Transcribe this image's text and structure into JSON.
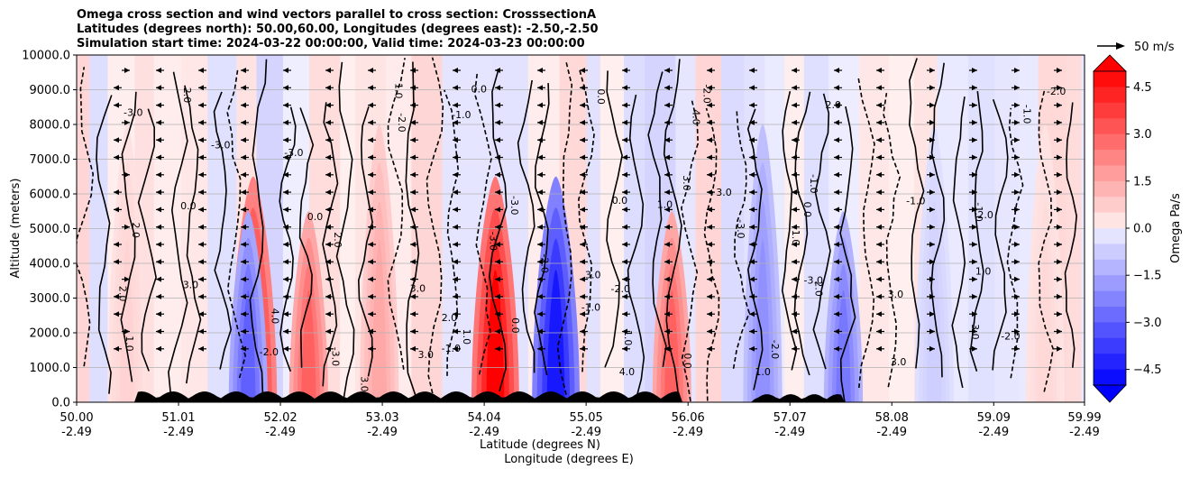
{
  "chart_data": {
    "type": "heatmap",
    "title_lines": [
      "Omega cross section and wind vectors parallel to cross section: CrosssectionA",
      "Latitudes (degrees north): 50.00,60.00, Longitudes (degrees east): -2.50,-2.50",
      "Simulation start time: 2024-03-22 00:00:00, Valid time: 2024-03-23 00:00:00"
    ],
    "ylabel": "Altitude (meters)",
    "xlabel_lat": "Latitude (degrees N)",
    "xlabel_lon": "Longitude (degrees E)",
    "ylim": [
      0,
      10000
    ],
    "xlim": [
      50.0,
      59.99
    ],
    "yticks": [
      "0.0",
      "1000.0",
      "2000.0",
      "3000.0",
      "4000.0",
      "5000.0",
      "6000.0",
      "7000.0",
      "8000.0",
      "9000.0",
      "10000.0"
    ],
    "xticks_lat": [
      "50.00",
      "51.01",
      "52.02",
      "53.03",
      "54.04",
      "55.05",
      "56.06",
      "57.07",
      "58.08",
      "59.09",
      "59.99"
    ],
    "xticks_lon": [
      "-2.49",
      "-2.49",
      "-2.49",
      "-2.49",
      "-2.49",
      "-2.49",
      "-2.49",
      "-2.49",
      "-2.49",
      "-2.49",
      "-2.49"
    ],
    "grid": true,
    "colorbar": {
      "label": "Omega Pa/s",
      "range": [
        -5.0,
        5.0
      ],
      "ticks": [
        "4.5",
        "3.0",
        "1.5",
        "0.0",
        "−1.5",
        "−3.0",
        "−4.5"
      ],
      "extend": "both",
      "low_color": "#0000ff",
      "high_color": "#ff0000"
    },
    "contour_labels": [
      "0.0",
      "-1.0",
      "1.0",
      "2.0",
      "-2.0",
      "3.0",
      "4.0",
      "-3.0"
    ],
    "wind_key": {
      "label": "50 m/s"
    },
    "features": [
      {
        "lat": 51.75,
        "omega": 4.5
      },
      {
        "lat": 52.3,
        "omega": 3.0
      },
      {
        "lat": 54.15,
        "omega": 5.0
      },
      {
        "lat": 54.75,
        "omega": -4.5
      },
      {
        "lat": 51.7,
        "omega": -3.0
      },
      {
        "lat": 53.0,
        "omega": 1.5
      },
      {
        "lat": 55.9,
        "omega": 3.0
      },
      {
        "lat": 57.6,
        "omega": -2.5
      },
      {
        "lat": 56.8,
        "omega": -2.0
      },
      {
        "lat": 58.5,
        "omega": -0.7
      },
      {
        "lat": 50.5,
        "omega": 0.6
      },
      {
        "lat": 59.6,
        "omega": 0.5
      }
    ]
  }
}
